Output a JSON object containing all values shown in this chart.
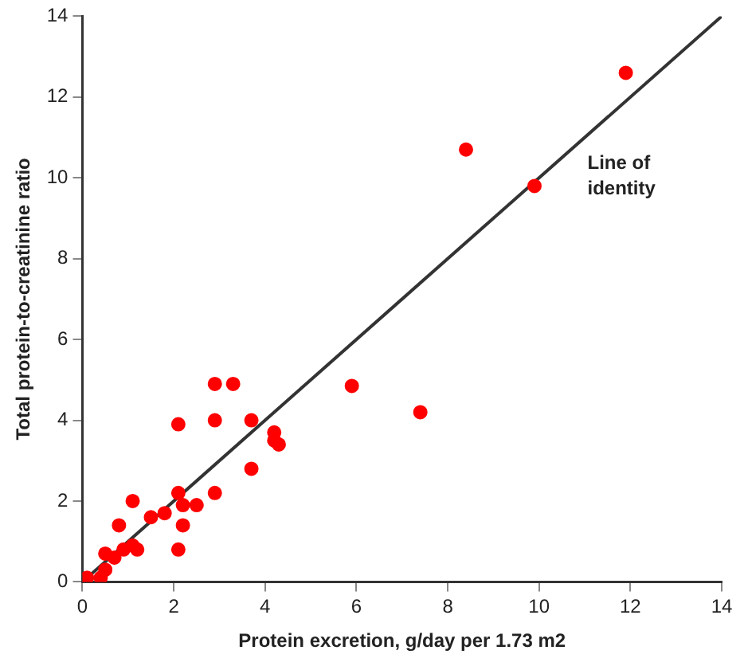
{
  "chart_data": {
    "type": "scatter",
    "xlabel": "Protein excretion, g/day per 1.73 m2",
    "ylabel": "Total protein-to-creatinine ratio",
    "xlim": [
      0,
      14
    ],
    "xticks": [
      0,
      2,
      4,
      6,
      8,
      10,
      12,
      14
    ],
    "ylim": [
      0,
      14
    ],
    "yticks": [
      0,
      2,
      4,
      6,
      8,
      10,
      12,
      14
    ],
    "grid": false,
    "legend": false,
    "marker": "circle",
    "series": [
      {
        "color": "#ff0000",
        "x": [
          11.9,
          8.4,
          9.9,
          5.9,
          7.4,
          2.9,
          3.3,
          2.9,
          3.7,
          4.2,
          4.2,
          4.3,
          3.7,
          2.1,
          2.9,
          2.1,
          2.2,
          2.2,
          2.5,
          2.1,
          1.8,
          1.5,
          1.1,
          0.8,
          1.2,
          1.1,
          0.9,
          0.7,
          0.5,
          0.1,
          0.4,
          0.5
        ],
        "values": [
          12.6,
          10.7,
          9.8,
          4.85,
          4.2,
          4.9,
          4.9,
          4.0,
          4.0,
          3.7,
          3.5,
          3.4,
          2.8,
          3.9,
          2.2,
          2.2,
          1.9,
          1.4,
          1.9,
          0.8,
          1.7,
          1.6,
          2.0,
          1.4,
          0.8,
          0.9,
          0.8,
          0.6,
          0.7,
          0.1,
          0.1,
          0.3
        ]
      },
      {
        "type": "line",
        "color": "#333333",
        "x": [
          0,
          14
        ],
        "values": [
          0,
          14
        ],
        "marker": "none"
      }
    ],
    "annotations": [
      "Line of identity"
    ]
  }
}
